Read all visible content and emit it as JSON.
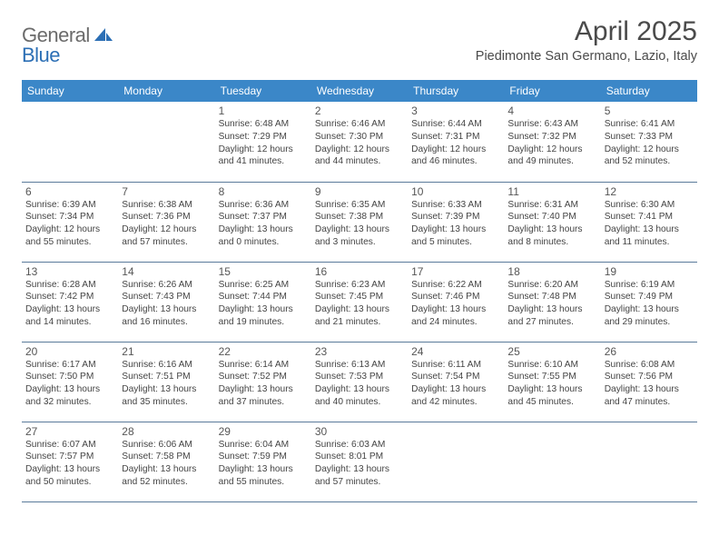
{
  "logo": {
    "part1": "General",
    "part2": "Blue"
  },
  "title": "April 2025",
  "location": "Piedimonte San Germano, Lazio, Italy",
  "colors": {
    "header_bg": "#3b87c8",
    "header_text": "#ffffff",
    "border": "#5a7a9a",
    "logo_gray": "#6b6b6b",
    "logo_blue": "#2c6fb5",
    "title_color": "#4a4a4a",
    "text_color": "#444444"
  },
  "weekdays": [
    "Sunday",
    "Monday",
    "Tuesday",
    "Wednesday",
    "Thursday",
    "Friday",
    "Saturday"
  ],
  "weeks": [
    [
      null,
      null,
      {
        "n": "1",
        "sr": "6:48 AM",
        "ss": "7:29 PM",
        "dl": "12 hours and 41 minutes."
      },
      {
        "n": "2",
        "sr": "6:46 AM",
        "ss": "7:30 PM",
        "dl": "12 hours and 44 minutes."
      },
      {
        "n": "3",
        "sr": "6:44 AM",
        "ss": "7:31 PM",
        "dl": "12 hours and 46 minutes."
      },
      {
        "n": "4",
        "sr": "6:43 AM",
        "ss": "7:32 PM",
        "dl": "12 hours and 49 minutes."
      },
      {
        "n": "5",
        "sr": "6:41 AM",
        "ss": "7:33 PM",
        "dl": "12 hours and 52 minutes."
      }
    ],
    [
      {
        "n": "6",
        "sr": "6:39 AM",
        "ss": "7:34 PM",
        "dl": "12 hours and 55 minutes."
      },
      {
        "n": "7",
        "sr": "6:38 AM",
        "ss": "7:36 PM",
        "dl": "12 hours and 57 minutes."
      },
      {
        "n": "8",
        "sr": "6:36 AM",
        "ss": "7:37 PM",
        "dl": "13 hours and 0 minutes."
      },
      {
        "n": "9",
        "sr": "6:35 AM",
        "ss": "7:38 PM",
        "dl": "13 hours and 3 minutes."
      },
      {
        "n": "10",
        "sr": "6:33 AM",
        "ss": "7:39 PM",
        "dl": "13 hours and 5 minutes."
      },
      {
        "n": "11",
        "sr": "6:31 AM",
        "ss": "7:40 PM",
        "dl": "13 hours and 8 minutes."
      },
      {
        "n": "12",
        "sr": "6:30 AM",
        "ss": "7:41 PM",
        "dl": "13 hours and 11 minutes."
      }
    ],
    [
      {
        "n": "13",
        "sr": "6:28 AM",
        "ss": "7:42 PM",
        "dl": "13 hours and 14 minutes."
      },
      {
        "n": "14",
        "sr": "6:26 AM",
        "ss": "7:43 PM",
        "dl": "13 hours and 16 minutes."
      },
      {
        "n": "15",
        "sr": "6:25 AM",
        "ss": "7:44 PM",
        "dl": "13 hours and 19 minutes."
      },
      {
        "n": "16",
        "sr": "6:23 AM",
        "ss": "7:45 PM",
        "dl": "13 hours and 21 minutes."
      },
      {
        "n": "17",
        "sr": "6:22 AM",
        "ss": "7:46 PM",
        "dl": "13 hours and 24 minutes."
      },
      {
        "n": "18",
        "sr": "6:20 AM",
        "ss": "7:48 PM",
        "dl": "13 hours and 27 minutes."
      },
      {
        "n": "19",
        "sr": "6:19 AM",
        "ss": "7:49 PM",
        "dl": "13 hours and 29 minutes."
      }
    ],
    [
      {
        "n": "20",
        "sr": "6:17 AM",
        "ss": "7:50 PM",
        "dl": "13 hours and 32 minutes."
      },
      {
        "n": "21",
        "sr": "6:16 AM",
        "ss": "7:51 PM",
        "dl": "13 hours and 35 minutes."
      },
      {
        "n": "22",
        "sr": "6:14 AM",
        "ss": "7:52 PM",
        "dl": "13 hours and 37 minutes."
      },
      {
        "n": "23",
        "sr": "6:13 AM",
        "ss": "7:53 PM",
        "dl": "13 hours and 40 minutes."
      },
      {
        "n": "24",
        "sr": "6:11 AM",
        "ss": "7:54 PM",
        "dl": "13 hours and 42 minutes."
      },
      {
        "n": "25",
        "sr": "6:10 AM",
        "ss": "7:55 PM",
        "dl": "13 hours and 45 minutes."
      },
      {
        "n": "26",
        "sr": "6:08 AM",
        "ss": "7:56 PM",
        "dl": "13 hours and 47 minutes."
      }
    ],
    [
      {
        "n": "27",
        "sr": "6:07 AM",
        "ss": "7:57 PM",
        "dl": "13 hours and 50 minutes."
      },
      {
        "n": "28",
        "sr": "6:06 AM",
        "ss": "7:58 PM",
        "dl": "13 hours and 52 minutes."
      },
      {
        "n": "29",
        "sr": "6:04 AM",
        "ss": "7:59 PM",
        "dl": "13 hours and 55 minutes."
      },
      {
        "n": "30",
        "sr": "6:03 AM",
        "ss": "8:01 PM",
        "dl": "13 hours and 57 minutes."
      },
      null,
      null,
      null
    ]
  ],
  "labels": {
    "sunrise": "Sunrise:",
    "sunset": "Sunset:",
    "daylight": "Daylight:"
  }
}
